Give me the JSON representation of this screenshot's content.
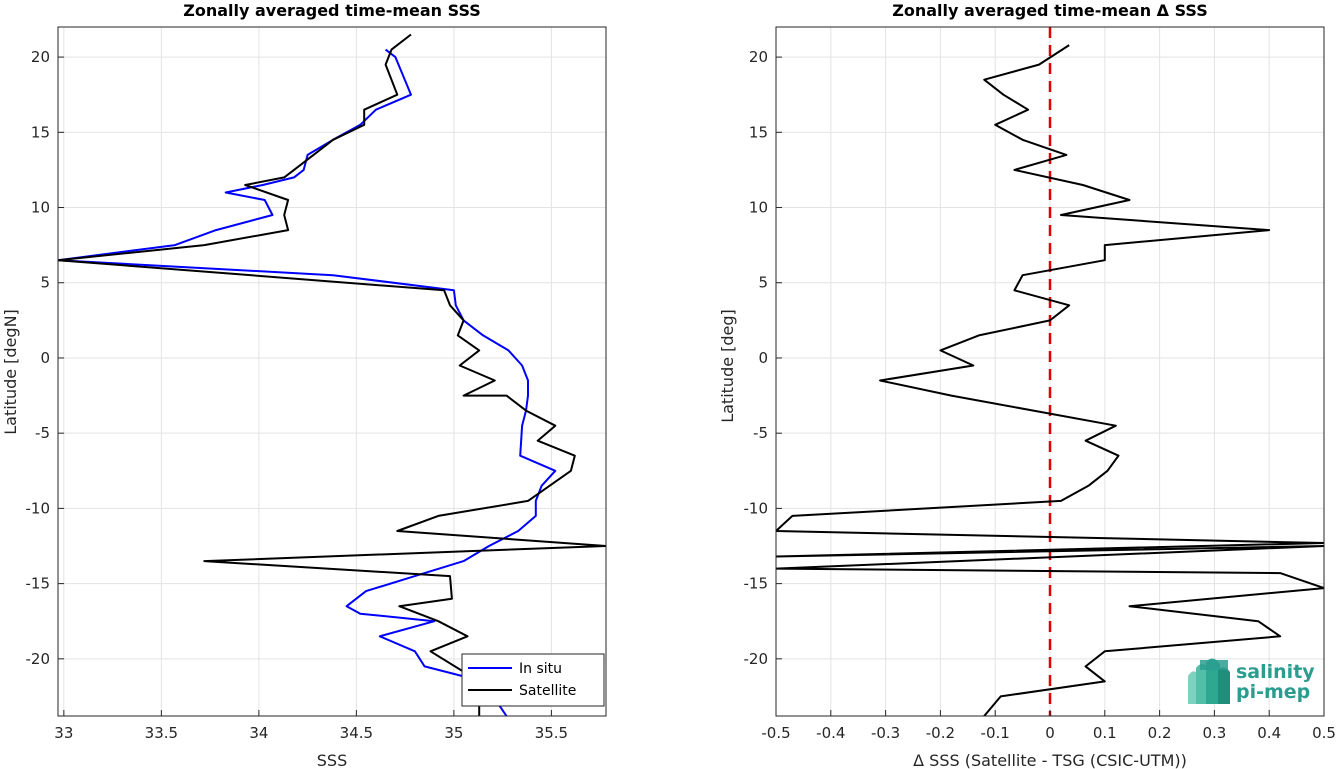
{
  "chart_data": [
    {
      "type": "line",
      "title": "Zonally averaged time-mean SSS",
      "xlabel": "SSS",
      "ylabel": "Latitude [degN]",
      "xlim": [
        32.97,
        35.78
      ],
      "ylim": [
        -23.8,
        22
      ],
      "xticks": [
        33,
        33.5,
        34,
        34.5,
        35,
        35.5
      ],
      "xtick_labels": [
        "33",
        "33.5",
        "34",
        "34.5",
        "35",
        "35.5"
      ],
      "yticks": [
        20,
        15,
        10,
        5,
        0,
        -5,
        -10,
        -15,
        -20
      ],
      "ytick_labels": [
        "20",
        "15",
        "10",
        "5",
        "0",
        "-5",
        "-10",
        "-15",
        "-20"
      ],
      "grid": true,
      "legend": {
        "placement": "bottom-right",
        "entries": [
          "In situ",
          "Satellite"
        ]
      },
      "series": [
        {
          "name": "In situ",
          "color": "#0000ff",
          "x": [
            34.65,
            34.7,
            34.78,
            34.6,
            34.52,
            34.38,
            34.25,
            34.23,
            34.18,
            34.02,
            33.83,
            34.03,
            34.07,
            33.78,
            33.57,
            32.97,
            34.38,
            35.0,
            35.01,
            35.05,
            35.15,
            35.28,
            35.35,
            35.38,
            35.38,
            35.37,
            35.35,
            35.34,
            35.52,
            35.45,
            35.42,
            35.42,
            35.33,
            35.18,
            35.05,
            34.8,
            34.55,
            34.45,
            34.52,
            34.9,
            34.62,
            34.8,
            34.85,
            35.15,
            35.27
          ],
          "y": [
            20.5,
            20.0,
            17.5,
            16.5,
            15.5,
            14.5,
            13.5,
            12.5,
            12.0,
            11.5,
            11.0,
            10.5,
            9.5,
            8.5,
            7.5,
            6.5,
            5.5,
            4.5,
            3.5,
            2.5,
            1.5,
            0.5,
            -0.5,
            -1.5,
            -2.5,
            -3.5,
            -4.5,
            -6.5,
            -7.5,
            -8.5,
            -9.5,
            -10.5,
            -11.5,
            -12.5,
            -13.5,
            -14.5,
            -15.5,
            -16.5,
            -17.0,
            -17.5,
            -18.5,
            -19.5,
            -20.5,
            -21.5,
            -23.8
          ]
        },
        {
          "name": "Satellite",
          "color": "#000000",
          "x": [
            34.78,
            34.68,
            34.65,
            34.71,
            34.54,
            34.54,
            34.38,
            34.28,
            34.18,
            34.13,
            33.93,
            34.15,
            34.13,
            34.15,
            33.72,
            32.97,
            34.95,
            34.98,
            35.05,
            35.02,
            35.13,
            35.03,
            35.21,
            35.05,
            35.27,
            35.37,
            35.52,
            35.43,
            35.62,
            35.6,
            35.38,
            34.92,
            34.71,
            35.78,
            33.72,
            34.98,
            34.99,
            34.72,
            34.92,
            35.07,
            34.88,
            35.13,
            35.13
          ],
          "y": [
            21.5,
            20.5,
            19.5,
            17.5,
            16.5,
            15.5,
            14.5,
            13.5,
            12.5,
            12.0,
            11.5,
            10.5,
            9.5,
            8.5,
            7.5,
            6.5,
            4.5,
            3.5,
            2.5,
            1.5,
            0.5,
            -0.5,
            -1.5,
            -2.5,
            -2.5,
            -3.5,
            -4.5,
            -5.5,
            -6.5,
            -7.5,
            -9.5,
            -10.5,
            -11.5,
            -12.5,
            -13.5,
            -14.5,
            -16.0,
            -16.5,
            -17.5,
            -18.5,
            -19.5,
            -21.5,
            -23.8
          ]
        }
      ]
    },
    {
      "type": "line",
      "title": "Zonally averaged time-mean Δ SSS",
      "xlabel": "Δ SSS (Satellite - TSG (CSIC-UTM))",
      "ylabel": "Latitude [deg]",
      "xlim": [
        -0.5,
        0.5
      ],
      "ylim": [
        -23.8,
        22
      ],
      "xticks": [
        -0.5,
        -0.4,
        -0.3,
        -0.2,
        -0.1,
        0,
        0.1,
        0.2,
        0.3,
        0.4,
        0.5
      ],
      "xtick_labels": [
        "-0.5",
        "-0.4",
        "-0.3",
        "-0.2",
        "-0.1",
        "0",
        "0.1",
        "0.2",
        "0.3",
        "0.4",
        "0.5"
      ],
      "yticks": [
        20,
        15,
        10,
        5,
        0,
        -5,
        -10,
        -15,
        -20
      ],
      "ytick_labels": [
        "20",
        "15",
        "10",
        "5",
        "0",
        "-5",
        "-10",
        "-15",
        "-20"
      ],
      "grid": true,
      "reference_line": {
        "x": 0,
        "color": "#e00000",
        "style": "dashed"
      },
      "series": [
        {
          "name": "",
          "color": "#000000",
          "x": [
            0.035,
            -0.02,
            -0.12,
            -0.085,
            -0.04,
            -0.1,
            -0.05,
            0.03,
            -0.065,
            0.06,
            0.145,
            0.02,
            0.4,
            0.1,
            0.1,
            -0.05,
            -0.065,
            0.035,
            0.0,
            -0.13,
            -0.2,
            -0.14,
            -0.31,
            -0.18,
            0.12,
            0.065,
            0.125,
            0.105,
            0.07,
            0.02,
            -0.47,
            -0.5,
            0.5,
            -0.5,
            0.5,
            -0.5,
            0.42,
            0.5,
            0.145,
            0.38,
            0.42,
            0.1,
            0.065,
            0.1,
            -0.09,
            -0.12
          ],
          "y": [
            20.8,
            19.5,
            18.5,
            17.5,
            16.5,
            15.5,
            14.5,
            13.5,
            12.5,
            11.5,
            10.5,
            9.5,
            8.5,
            7.5,
            6.5,
            5.5,
            4.5,
            3.5,
            2.5,
            1.5,
            0.5,
            -0.5,
            -1.5,
            -2.5,
            -4.5,
            -5.5,
            -6.5,
            -7.5,
            -8.5,
            -9.5,
            -10.5,
            -11.5,
            -12.3,
            -13.2,
            -12.5,
            -14.0,
            -14.3,
            -15.3,
            -16.5,
            -17.5,
            -18.5,
            -19.5,
            -20.5,
            -21.5,
            -22.5,
            -23.8
          ]
        }
      ],
      "logo": {
        "line1": "salinity",
        "line2": "pi-mep"
      }
    }
  ]
}
